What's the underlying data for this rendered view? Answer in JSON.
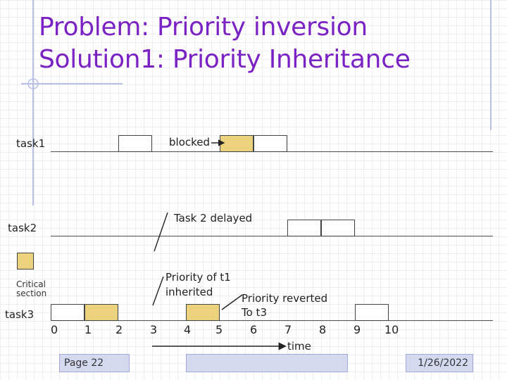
{
  "title": {
    "line1": "Problem: Priority inversion",
    "line2": "Solution1: Priority Inheritance"
  },
  "tasks": {
    "task1": "task1",
    "task2": "task2",
    "task3": "task3"
  },
  "legend": {
    "critical_line1": "Critical",
    "critical_line2": "section"
  },
  "annotations": {
    "blocked": "blocked",
    "task2_delayed": "Task 2 delayed",
    "inherited_line1": "Priority of t1",
    "inherited_line2": "inherited",
    "reverted_line1": "Priority reverted",
    "reverted_line2": "To t3"
  },
  "axis": {
    "ticks": [
      "0",
      "1",
      "2",
      "3",
      "4",
      "5",
      "6",
      "7",
      "8",
      "9",
      "10"
    ],
    "label": "time"
  },
  "footer": {
    "page": "Page 22",
    "date": "1/26/2022"
  },
  "colors": {
    "title": "#7b22c4",
    "critical_section": "#ecd27d",
    "footer": "#d4d9f0"
  }
}
